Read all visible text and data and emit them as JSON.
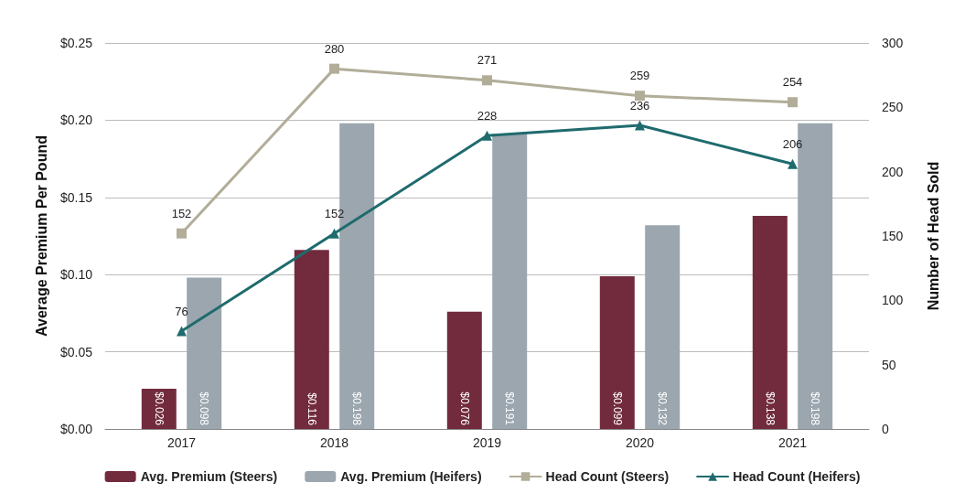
{
  "chart_data": {
    "type": "bar",
    "ylabel": "Average Premium Per Pound",
    "y2label": "Number of Head Sold",
    "categories": [
      "2017",
      "2018",
      "2019",
      "2020",
      "2021"
    ],
    "series": [
      {
        "name": "Avg. Premium (Steers)",
        "color": "#722b3d",
        "values": [
          0.026,
          0.116,
          0.076,
          0.099,
          0.138
        ],
        "value_labels": [
          "$0.026",
          "$0.116",
          "$0.076",
          "$0.099",
          "$0.138"
        ]
      },
      {
        "name": "Avg. Premium (Heifers)",
        "color": "#9ba6ae",
        "values": [
          0.098,
          0.198,
          0.191,
          0.132,
          0.198
        ],
        "value_labels": [
          "$0.098",
          "$0.198",
          "$0.191",
          "$0.132",
          "$0.198"
        ]
      },
      {
        "name": "Head Count (Steers)",
        "type": "line",
        "axis": "y2",
        "marker": "square",
        "color": "#b2ad99",
        "values": [
          152,
          280,
          271,
          259,
          254
        ],
        "value_labels": [
          "152",
          "280",
          "271",
          "259",
          "254"
        ]
      },
      {
        "name": "Head Count (Heifers)",
        "type": "line",
        "axis": "y2",
        "marker": "triangle",
        "color": "#1f6b6e",
        "values": [
          76,
          152,
          228,
          236,
          206
        ],
        "value_labels": [
          "76",
          "152",
          "228",
          "236",
          "206"
        ]
      }
    ],
    "ylim": [
      0,
      0.25
    ],
    "yticks": [
      {
        "value": 0,
        "label": "$0.00"
      },
      {
        "value": 0.05,
        "label": "$0.05"
      },
      {
        "value": 0.1,
        "label": "$0.10"
      },
      {
        "value": 0.15,
        "label": "$0.15"
      },
      {
        "value": 0.2,
        "label": "$0.20"
      },
      {
        "value": 0.25,
        "label": "$0.25"
      }
    ],
    "y2lim": [
      0,
      300
    ],
    "y2ticks": [
      0,
      50,
      100,
      150,
      200,
      250,
      300
    ],
    "grid": "y",
    "legend": "bottom",
    "line_style": "solid"
  }
}
